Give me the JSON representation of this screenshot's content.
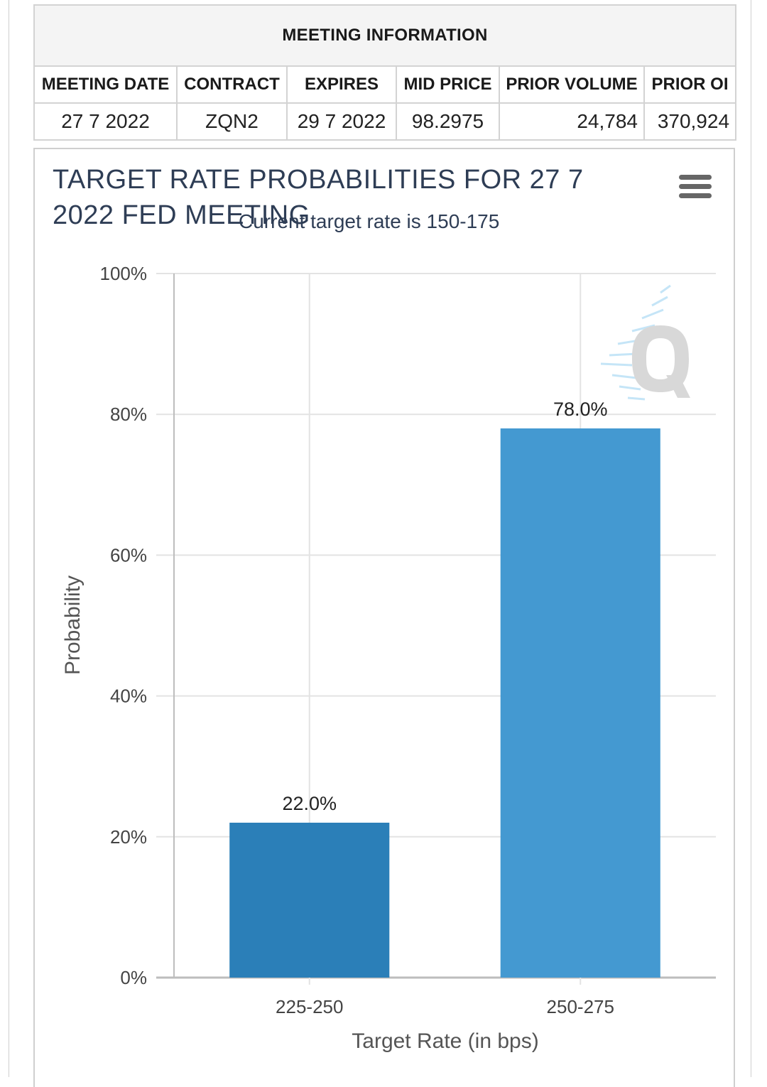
{
  "meeting_info": {
    "title": "MEETING INFORMATION",
    "headers": [
      "MEETING DATE",
      "CONTRACT",
      "EXPIRES",
      "MID PRICE",
      "PRIOR VOLUME",
      "PRIOR OI"
    ],
    "row": [
      "27 7 2022",
      "ZQN2",
      "29 7 2022",
      "98.2975",
      "24,784",
      "370,924"
    ]
  },
  "chart": {
    "title": "TARGET RATE PROBABILITIES FOR 27 7 2022 FED MEETING",
    "subtitle": "Current target rate is 150-175",
    "menu_icon": "hamburger-menu-icon",
    "watermark_icon": "q-logo-watermark"
  },
  "chart_data": {
    "type": "bar",
    "title": "TARGET RATE PROBABILITIES FOR 27 7 2022 FED MEETING",
    "subtitle": "Current target rate is 150-175",
    "categories": [
      "225-250",
      "250-275"
    ],
    "values": [
      22.0,
      78.0
    ],
    "data_labels": [
      "22.0%",
      "78.0%"
    ],
    "xlabel": "Target Rate (in bps)",
    "ylabel": "Probability",
    "ylim": [
      0,
      100
    ],
    "yticks": [
      "0%",
      "20%",
      "40%",
      "60%",
      "80%",
      "100%"
    ],
    "grid": true,
    "colors": [
      "#2b7fb8",
      "#4499d1"
    ]
  }
}
